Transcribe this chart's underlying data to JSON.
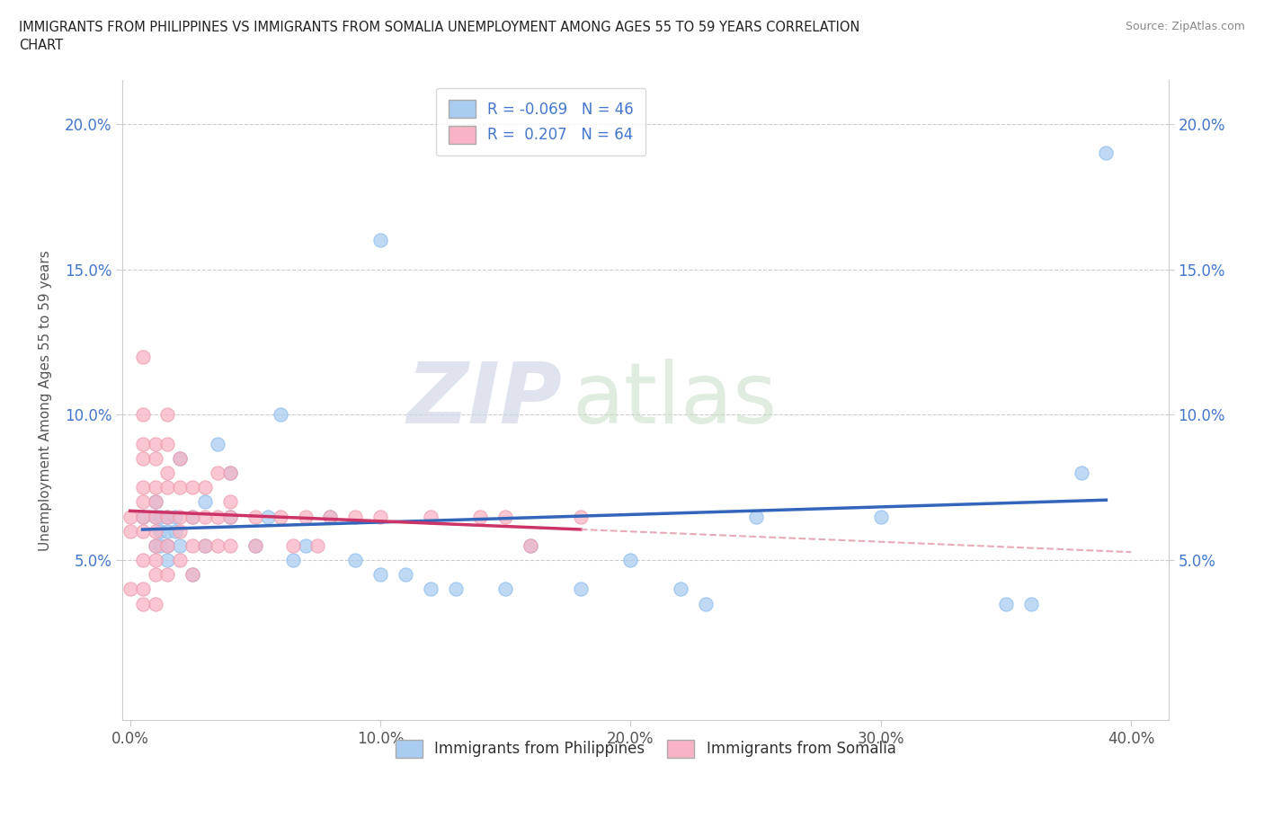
{
  "title": "IMMIGRANTS FROM PHILIPPINES VS IMMIGRANTS FROM SOMALIA UNEMPLOYMENT AMONG AGES 55 TO 59 YEARS CORRELATION\nCHART",
  "source": "Source: ZipAtlas.com",
  "ylabel": "Unemployment Among Ages 55 to 59 years",
  "xlim": [
    -0.003,
    0.415
  ],
  "ylim": [
    -0.005,
    0.215
  ],
  "yticks": [
    0.05,
    0.1,
    0.15,
    0.2
  ],
  "ytick_labels": [
    "5.0%",
    "10.0%",
    "15.0%",
    "20.0%"
  ],
  "xticks": [
    0.0,
    0.1,
    0.2,
    0.3,
    0.4
  ],
  "xtick_labels": [
    "0.0%",
    "10.0%",
    "20.0%",
    "30.0%",
    "40.0%"
  ],
  "philippines_color": "#aaccf0",
  "somalia_color": "#f8b4c4",
  "philippines_line_color": "#3366bb",
  "somalia_line_color": "#cc3366",
  "somalia_dash_color": "#dd8899",
  "r_philippines": -0.069,
  "r_somalia": 0.207,
  "n_philippines": 46,
  "n_somalia": 64,
  "watermark_zip": "ZIP",
  "watermark_atlas": "atlas",
  "philippines_x": [
    0.005,
    0.01,
    0.01,
    0.01,
    0.012,
    0.012,
    0.012,
    0.015,
    0.015,
    0.015,
    0.015,
    0.018,
    0.018,
    0.02,
    0.02,
    0.025,
    0.025,
    0.03,
    0.03,
    0.035,
    0.04,
    0.04,
    0.05,
    0.055,
    0.06,
    0.065,
    0.07,
    0.08,
    0.09,
    0.1,
    0.1,
    0.11,
    0.12,
    0.13,
    0.15,
    0.16,
    0.18,
    0.2,
    0.22,
    0.23,
    0.25,
    0.3,
    0.35,
    0.36,
    0.38,
    0.39
  ],
  "philippines_y": [
    0.065,
    0.07,
    0.065,
    0.055,
    0.065,
    0.06,
    0.055,
    0.065,
    0.06,
    0.055,
    0.05,
    0.065,
    0.06,
    0.085,
    0.055,
    0.065,
    0.045,
    0.07,
    0.055,
    0.09,
    0.065,
    0.08,
    0.055,
    0.065,
    0.1,
    0.05,
    0.055,
    0.065,
    0.05,
    0.045,
    0.16,
    0.045,
    0.04,
    0.04,
    0.04,
    0.055,
    0.04,
    0.05,
    0.04,
    0.035,
    0.065,
    0.065,
    0.035,
    0.035,
    0.08,
    0.19
  ],
  "somalia_x": [
    0.0,
    0.0,
    0.0,
    0.005,
    0.005,
    0.005,
    0.005,
    0.005,
    0.005,
    0.005,
    0.005,
    0.005,
    0.005,
    0.005,
    0.01,
    0.01,
    0.01,
    0.01,
    0.01,
    0.01,
    0.01,
    0.01,
    0.01,
    0.01,
    0.015,
    0.015,
    0.015,
    0.015,
    0.015,
    0.015,
    0.015,
    0.02,
    0.02,
    0.02,
    0.02,
    0.02,
    0.025,
    0.025,
    0.025,
    0.025,
    0.03,
    0.03,
    0.03,
    0.035,
    0.035,
    0.035,
    0.04,
    0.04,
    0.04,
    0.04,
    0.05,
    0.05,
    0.06,
    0.065,
    0.07,
    0.075,
    0.08,
    0.09,
    0.1,
    0.12,
    0.14,
    0.15,
    0.16,
    0.18
  ],
  "somalia_y": [
    0.065,
    0.06,
    0.04,
    0.12,
    0.1,
    0.09,
    0.085,
    0.075,
    0.07,
    0.065,
    0.06,
    0.05,
    0.04,
    0.035,
    0.09,
    0.085,
    0.075,
    0.07,
    0.065,
    0.06,
    0.055,
    0.05,
    0.045,
    0.035,
    0.1,
    0.09,
    0.08,
    0.075,
    0.065,
    0.055,
    0.045,
    0.085,
    0.075,
    0.065,
    0.06,
    0.05,
    0.075,
    0.065,
    0.055,
    0.045,
    0.075,
    0.065,
    0.055,
    0.08,
    0.065,
    0.055,
    0.08,
    0.07,
    0.065,
    0.055,
    0.065,
    0.055,
    0.065,
    0.055,
    0.065,
    0.055,
    0.065,
    0.065,
    0.065,
    0.065,
    0.065,
    0.065,
    0.055,
    0.065
  ]
}
